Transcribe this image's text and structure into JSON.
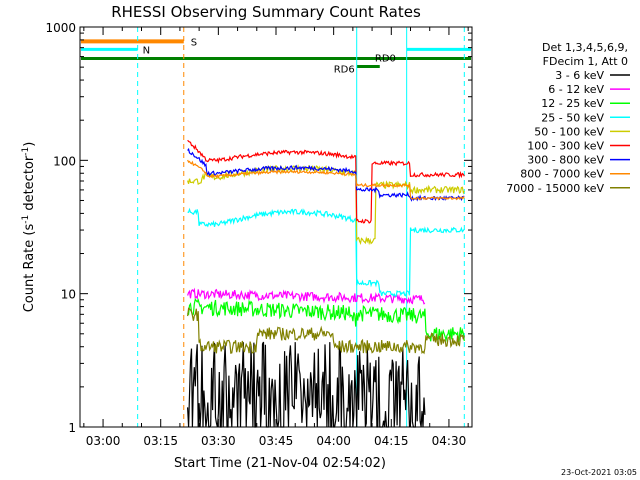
{
  "chart_data": {
    "type": "line",
    "title": "RHESSI Observing Summary Count Rates",
    "xlabel": "Start Time (21-Nov-04 02:54:02)",
    "ylabel_main": "Count Rate (s",
    "ylabel_sup1": "-1",
    "ylabel_mid": " detector",
    "ylabel_sup2": "-1",
    "ylabel_end": ")",
    "y_scale": "log",
    "ylim": [
      1,
      1000
    ],
    "xlim_minutes": [
      -6,
      96
    ],
    "x_ticks": [
      {
        "label": "03:00",
        "minutes": 0
      },
      {
        "label": "03:15",
        "minutes": 15
      },
      {
        "label": "03:30",
        "minutes": 30
      },
      {
        "label": "03:45",
        "minutes": 45
      },
      {
        "label": "04:00",
        "minutes": 60
      },
      {
        "label": "04:15",
        "minutes": 75
      },
      {
        "label": "04:30",
        "minutes": 90
      }
    ],
    "y_ticks": [
      {
        "label": "1",
        "value": 1
      },
      {
        "label": "10",
        "value": 10
      },
      {
        "label": "100",
        "value": 100
      },
      {
        "label": "1000",
        "value": 1000
      }
    ],
    "legend_title": [
      "Det 1,3,4,5,6,9,",
      "FDecim 1, Att 0"
    ],
    "series": [
      {
        "name": "3 - 6 keV",
        "color": "#000000"
      },
      {
        "name": "6 - 12 keV",
        "color": "#ff00ff"
      },
      {
        "name": "12 - 25 keV",
        "color": "#00ff00"
      },
      {
        "name": "25 - 50 keV",
        "color": "#00ffff"
      },
      {
        "name": "50 - 100 keV",
        "color": "#cccc00"
      },
      {
        "name": "100 - 300 keV",
        "color": "#ff0000"
      },
      {
        "name": "300 - 800 keV",
        "color": "#0000ff"
      },
      {
        "name": "800 - 7000 keV",
        "color": "#ff8800"
      },
      {
        "name": "7000 - 15000 keV",
        "color": "#808000"
      }
    ],
    "flags": [
      {
        "label": "S",
        "color": "#ff8800"
      },
      {
        "label": "N",
        "color": "#00ffff"
      },
      {
        "label": "RD0",
        "color": "#008000"
      },
      {
        "label": "RD6",
        "color": "#008000"
      }
    ],
    "vertical_markers": [
      {
        "minutes": 9,
        "color": "#00ffff",
        "style": "dashed"
      },
      {
        "minutes": 21,
        "color": "#ff8800",
        "style": "dashed"
      },
      {
        "minutes": 66,
        "color": "#00ffff",
        "style": "solid"
      },
      {
        "minutes": 79,
        "color": "#00ffff",
        "style": "solid"
      },
      {
        "minutes": 94,
        "color": "#00ffff",
        "style": "dashed"
      }
    ]
  },
  "footer": {
    "timestamp": "23-Oct-2021 03:05"
  }
}
